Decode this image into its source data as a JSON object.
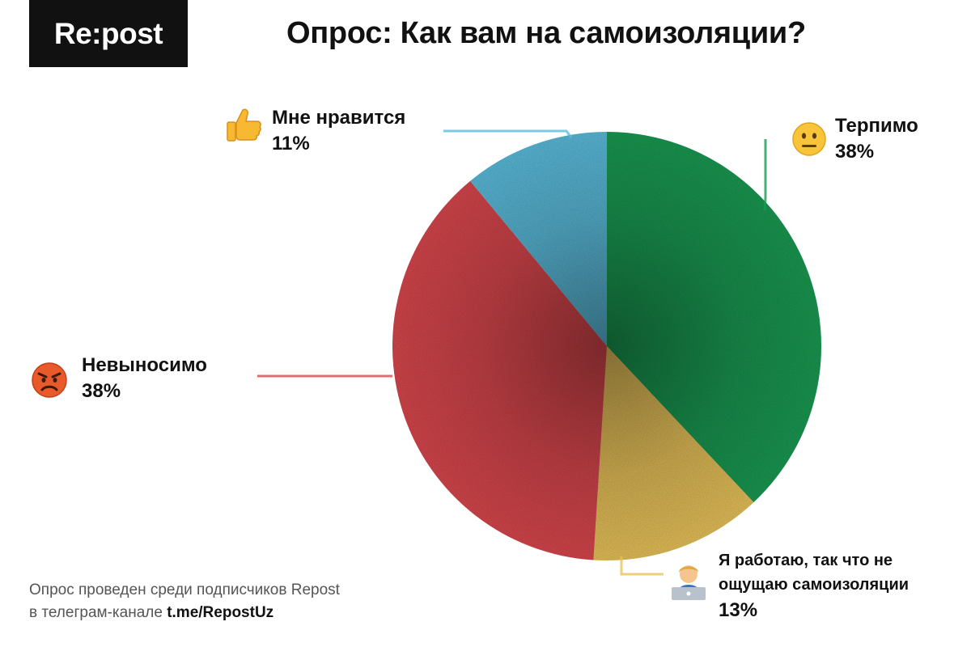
{
  "brand": {
    "logo_text": "Re:post"
  },
  "title": "Опрос: Как вам на самоизоляции?",
  "footer": {
    "line1": "Опрос проведен среди подписчиков Repost",
    "line2_prefix": "в телеграм-канале ",
    "line2_link": "t.me/RepostUz"
  },
  "chart_data": {
    "type": "pie",
    "title": "Опрос: Как вам на самоизоляции?",
    "start": "12 o'clock",
    "direction": "clockwise",
    "slices": [
      {
        "label": "Терпимо",
        "value": 38,
        "value_label": "38%",
        "color": "#1a9a52",
        "icon": "neutral-face-icon"
      },
      {
        "label": "Я работаю, так что не ощущаю самоизоляции",
        "label_lines": [
          "Я работаю, так что не",
          "ощущаю самоизоляции"
        ],
        "value": 13,
        "value_label": "13%",
        "color": "#e8c25a",
        "icon": "technologist-icon"
      },
      {
        "label": "Невыносимо",
        "value": 38,
        "value_label": "38%",
        "color": "#d8474d",
        "icon": "angry-face-icon"
      },
      {
        "label": "Мне нравится",
        "value": 11,
        "value_label": "11%",
        "color": "#5bbcdc",
        "icon": "thumbs-up-icon"
      }
    ]
  }
}
